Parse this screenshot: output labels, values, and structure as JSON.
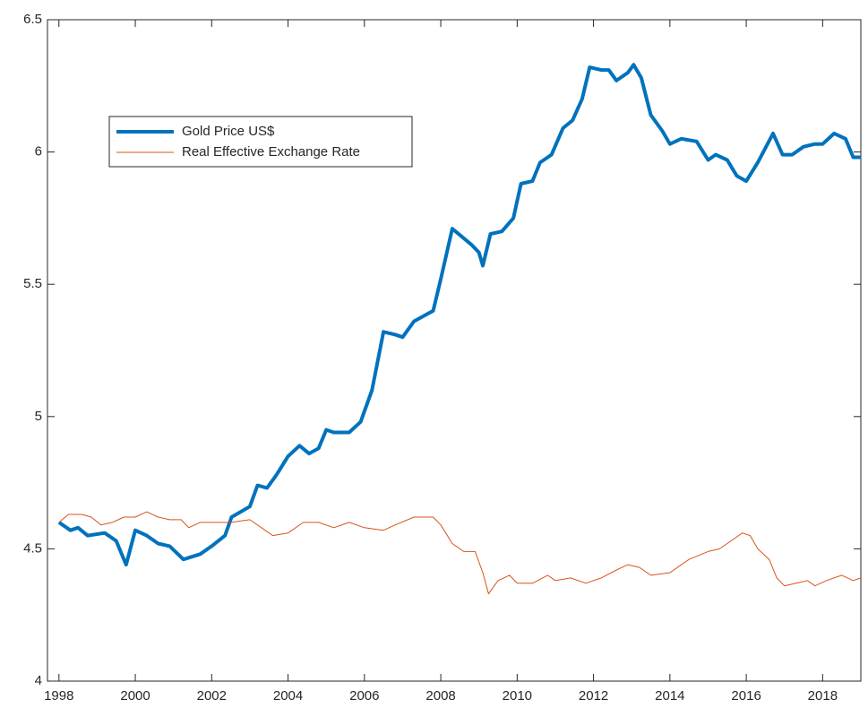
{
  "chart_data": {
    "type": "line",
    "xlim": [
      1997.7,
      2019
    ],
    "xticks": [
      1998,
      2000,
      2002,
      2004,
      2006,
      2008,
      2010,
      2012,
      2014,
      2016,
      2018
    ],
    "ylim": [
      4,
      6.5
    ],
    "yticks": [
      4,
      4.5,
      5,
      5.5,
      6,
      6.5
    ],
    "legend": "upper left",
    "series": [
      {
        "name": "Gold Price US$",
        "color": "#0072BD",
        "line_width": 4,
        "x": [
          1998,
          1998.3,
          1998.5,
          1998.75,
          1999.2,
          1999.5,
          1999.76,
          2000,
          2000.3,
          2000.6,
          2000.9,
          2001.26,
          2001.7,
          2002,
          2002.35,
          2002.52,
          2003,
          2003.2,
          2003.45,
          2003.7,
          2004,
          2004.3,
          2004.55,
          2004.8,
          2005,
          2005.2,
          2005.6,
          2005.9,
          2006.2,
          2006.5,
          2006.8,
          2007,
          2007.3,
          2007.8,
          2008,
          2008.3,
          2008.8,
          2009,
          2009.1,
          2009.3,
          2009.6,
          2009.9,
          2010.1,
          2010.4,
          2010.6,
          2010.9,
          2011.2,
          2011.45,
          2011.7,
          2011.9,
          2012.2,
          2012.4,
          2012.6,
          2012.9,
          2013.05,
          2013.25,
          2013.5,
          2013.8,
          2014,
          2014.3,
          2014.7,
          2015,
          2015.2,
          2015.5,
          2015.75,
          2016,
          2016.3,
          2016.7,
          2016.95,
          2017.2,
          2017.5,
          2017.8,
          2018,
          2018.3,
          2018.6,
          2018.8,
          2019
        ],
        "values": [
          4.6,
          4.57,
          4.58,
          4.55,
          4.56,
          4.53,
          4.44,
          4.57,
          4.55,
          4.52,
          4.51,
          4.46,
          4.48,
          4.51,
          4.55,
          4.62,
          4.66,
          4.74,
          4.73,
          4.78,
          4.85,
          4.89,
          4.86,
          4.88,
          4.95,
          4.94,
          4.94,
          4.98,
          5.1,
          5.32,
          5.31,
          5.3,
          5.36,
          5.4,
          5.52,
          5.71,
          5.65,
          5.62,
          5.57,
          5.69,
          5.7,
          5.75,
          5.88,
          5.89,
          5.96,
          5.99,
          6.09,
          6.12,
          6.2,
          6.32,
          6.31,
          6.31,
          6.27,
          6.3,
          6.33,
          6.28,
          6.14,
          6.08,
          6.03,
          6.05,
          6.04,
          5.97,
          5.99,
          5.97,
          5.91,
          5.89,
          5.96,
          6.07,
          5.99,
          5.99,
          6.02,
          6.03,
          6.03,
          6.07,
          6.05,
          5.98,
          5.98
        ]
      },
      {
        "name": "Real Effective Exchange Rate",
        "color": "#D95319",
        "line_width": 1,
        "x": [
          1998,
          1998.25,
          1998.6,
          1998.85,
          1999.1,
          1999.4,
          1999.7,
          2000,
          2000.3,
          2000.6,
          2000.9,
          2001.2,
          2001.4,
          2001.7,
          2002,
          2002.5,
          2003,
          2003.4,
          2003.6,
          2004,
          2004.4,
          2004.8,
          2005.2,
          2005.6,
          2006,
          2006.5,
          2006.8,
          2007.3,
          2007.8,
          2008,
          2008.3,
          2008.6,
          2008.9,
          2009.1,
          2009.25,
          2009.5,
          2009.8,
          2010,
          2010.4,
          2010.8,
          2011,
          2011.4,
          2011.8,
          2012.2,
          2012.6,
          2012.9,
          2013.2,
          2013.5,
          2014,
          2014.5,
          2015,
          2015.3,
          2015.7,
          2015.9,
          2016.1,
          2016.3,
          2016.6,
          2016.8,
          2017,
          2017.3,
          2017.6,
          2017.8,
          2018.1,
          2018.5,
          2018.8,
          2019
        ],
        "values": [
          4.6,
          4.63,
          4.63,
          4.62,
          4.59,
          4.6,
          4.62,
          4.62,
          4.64,
          4.62,
          4.61,
          4.61,
          4.58,
          4.6,
          4.6,
          4.6,
          4.61,
          4.57,
          4.55,
          4.56,
          4.6,
          4.6,
          4.58,
          4.6,
          4.58,
          4.57,
          4.59,
          4.62,
          4.62,
          4.59,
          4.52,
          4.49,
          4.49,
          4.41,
          4.33,
          4.38,
          4.4,
          4.37,
          4.37,
          4.4,
          4.38,
          4.39,
          4.37,
          4.39,
          4.42,
          4.44,
          4.43,
          4.4,
          4.41,
          4.46,
          4.49,
          4.5,
          4.54,
          4.56,
          4.55,
          4.5,
          4.46,
          4.39,
          4.36,
          4.37,
          4.38,
          4.36,
          4.38,
          4.4,
          4.38,
          4.39
        ]
      }
    ]
  }
}
